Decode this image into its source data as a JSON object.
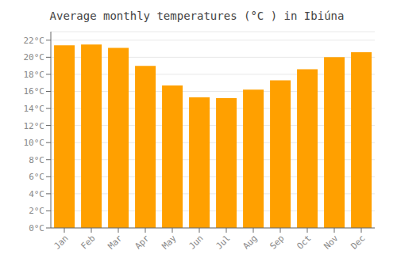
{
  "chart_data": {
    "type": "bar",
    "title": "Average monthly temperatures (°C ) in Ibiúna",
    "categories": [
      "Jan",
      "Feb",
      "Mar",
      "Apr",
      "May",
      "Jun",
      "Jul",
      "Aug",
      "Sep",
      "Oct",
      "Nov",
      "Dec"
    ],
    "values": [
      21.4,
      21.5,
      21.1,
      19.0,
      16.7,
      15.3,
      15.2,
      16.2,
      17.3,
      18.6,
      20.0,
      20.6
    ],
    "color": "#FFA000",
    "ylim": [
      0,
      23
    ],
    "yticks": [
      {
        "value": 0,
        "label": "0°C"
      },
      {
        "value": 2,
        "label": "2°C"
      },
      {
        "value": 4,
        "label": "4°C"
      },
      {
        "value": 6,
        "label": "6°C"
      },
      {
        "value": 8,
        "label": "8°C"
      },
      {
        "value": 10,
        "label": "10°C"
      },
      {
        "value": 12,
        "label": "12°C"
      },
      {
        "value": 14,
        "label": "14°C"
      },
      {
        "value": 16,
        "label": "16°C"
      },
      {
        "value": 18,
        "label": "18°C"
      },
      {
        "value": 20,
        "label": "20°C"
      },
      {
        "value": 22,
        "label": "22°C"
      }
    ],
    "grid": true
  }
}
